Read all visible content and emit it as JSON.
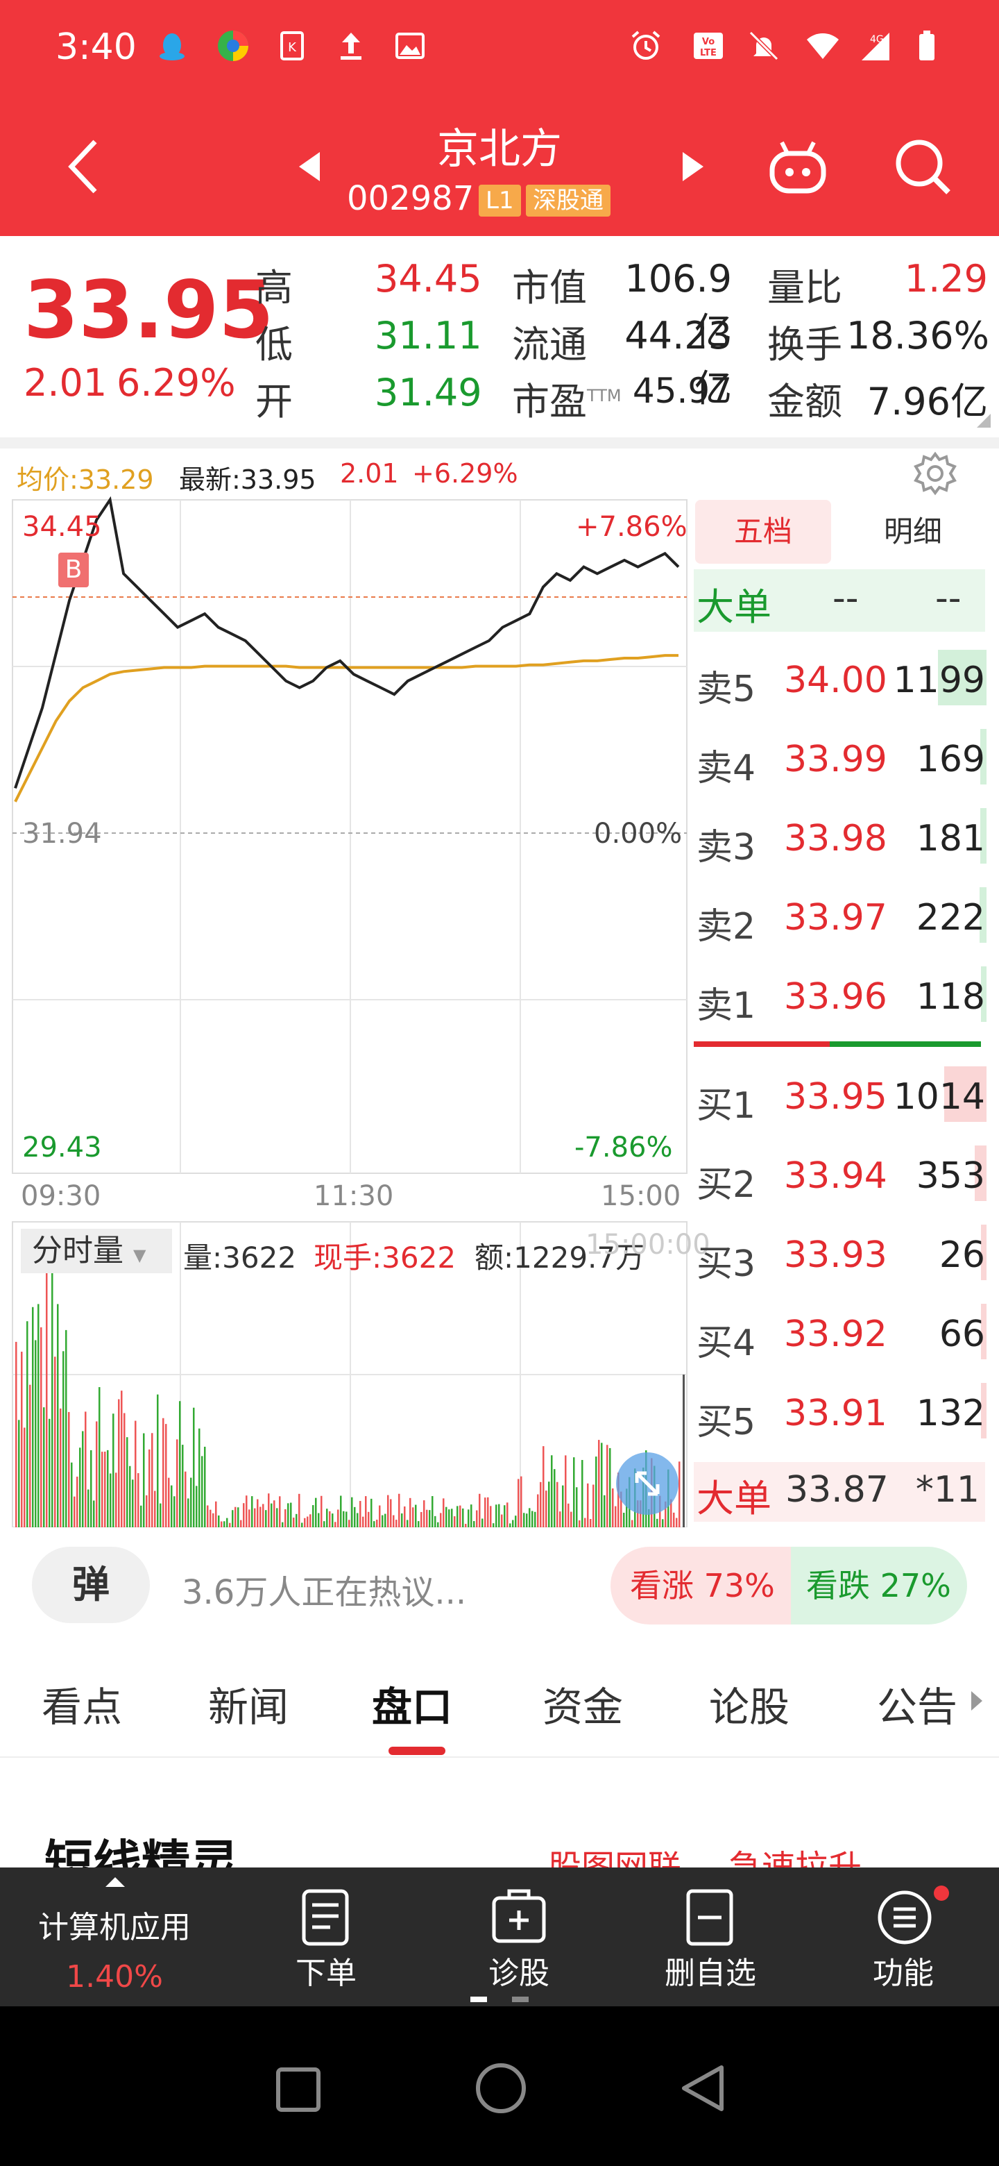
{
  "status_bar": {
    "time": "3:40"
  },
  "header": {
    "title": "京北方",
    "code": "002987",
    "tag_level": "L1",
    "tag_connect": "深股通"
  },
  "quote": {
    "price": "33.95",
    "change": "2.01",
    "change_pct": "6.29%",
    "high_label": "高",
    "high": "34.45",
    "low_label": "低",
    "low": "31.11",
    "open_label": "开",
    "open": "31.49",
    "mktcap_label": "市值",
    "mktcap": "106.9亿",
    "float_label": "流通",
    "float": "44.23亿",
    "pe_label": "市盈",
    "pe_sup": "TTM",
    "pe": "45.97",
    "volratio_label": "量比",
    "volratio": "1.29",
    "turnover_label": "换手",
    "turnover": "18.36%",
    "amount_label": "金额",
    "amount": "7.96亿"
  },
  "chart_legend": {
    "avg": "均价:33.29",
    "latest": "最新:33.95",
    "chg": "2.01",
    "pct": "+6.29%"
  },
  "chart_data": {
    "type": "line",
    "y_max_label": "34.45",
    "y_mid_label": "31.94",
    "y_min_label": "29.43",
    "pct_max_label": "+7.86%",
    "pct_mid_label": "0.00%",
    "pct_min_label": "-7.86%",
    "x_labels": [
      "09:30",
      "11:30",
      "15:00"
    ],
    "ylim": [
      29.43,
      34.45
    ],
    "buy_marker": "B",
    "series": [
      {
        "values": [
          32.3,
          32.6,
          32.9,
          33.3,
          33.7,
          34.0,
          34.3,
          34.45,
          33.9,
          33.8,
          33.7,
          33.6,
          33.5,
          33.55,
          33.6,
          33.5,
          33.45,
          33.4,
          33.3,
          33.2,
          33.1,
          33.05,
          33.1,
          33.2,
          33.25,
          33.15,
          33.1,
          33.05,
          33.0,
          33.1,
          33.15,
          33.2,
          33.25,
          33.3,
          33.35,
          33.4,
          33.5,
          33.55,
          33.6,
          33.8,
          33.9,
          33.85,
          33.95,
          33.9,
          33.95,
          34.0,
          33.95,
          34.0,
          34.05,
          33.95
        ]
      },
      {
        "values": [
          32.2,
          32.4,
          32.6,
          32.8,
          32.95,
          33.05,
          33.1,
          33.15,
          33.17,
          33.18,
          33.19,
          33.2,
          33.2,
          33.2,
          33.21,
          33.21,
          33.21,
          33.21,
          33.21,
          33.21,
          33.21,
          33.2,
          33.2,
          33.2,
          33.2,
          33.2,
          33.2,
          33.2,
          33.2,
          33.2,
          33.2,
          33.2,
          33.2,
          33.2,
          33.21,
          33.21,
          33.21,
          33.21,
          33.22,
          33.22,
          33.23,
          33.24,
          33.25,
          33.25,
          33.26,
          33.27,
          33.27,
          33.28,
          33.29,
          33.29
        ]
      }
    ]
  },
  "volume_panel": {
    "mode": "分时量",
    "vol": "量:3622",
    "now_hand": "现手:3622",
    "amount": "额:1229.7万",
    "time_overlay": "15:00:00"
  },
  "order_book": {
    "tab_five": "五档",
    "tab_detail": "明细",
    "big_order_label": "大单",
    "big_order_val1": "--",
    "big_order_val2": "--",
    "asks": [
      {
        "label": "卖5",
        "price": "34.00",
        "qty": "1199",
        "pct": 0.48
      },
      {
        "label": "卖4",
        "price": "33.99",
        "qty": "169",
        "pct": 0.06
      },
      {
        "label": "卖3",
        "price": "33.98",
        "qty": "181",
        "pct": 0.06
      },
      {
        "label": "卖2",
        "price": "33.97",
        "qty": "222",
        "pct": 0.07
      },
      {
        "label": "卖1",
        "price": "33.96",
        "qty": "118",
        "pct": 0.04
      }
    ],
    "bids": [
      {
        "label": "买1",
        "price": "33.95",
        "qty": "1014",
        "pct": 0.42
      },
      {
        "label": "买2",
        "price": "33.94",
        "qty": "353",
        "pct": 0.12
      },
      {
        "label": "买3",
        "price": "33.93",
        "qty": "26",
        "pct": 0.02
      },
      {
        "label": "买4",
        "price": "33.92",
        "qty": "66",
        "pct": 0.02
      },
      {
        "label": "买5",
        "price": "33.91",
        "qty": "132",
        "pct": 0.03
      }
    ],
    "big_trade_label": "大单",
    "big_trade_price": "33.87",
    "big_trade_qty": "*11"
  },
  "community": {
    "danmu_label": "弹",
    "discussing": "3.6万人正在热议...",
    "bull": "看涨 73%",
    "bear": "看跌 27%",
    "bull_pct": 73
  },
  "tabs": [
    "看点",
    "新闻",
    "盘口",
    "资金",
    "论股",
    "公告"
  ],
  "section": {
    "title": "短线精灵",
    "link1": "股图网联",
    "link2": "急速拉升"
  },
  "bottom_bar": {
    "sector_name": "计算机应用",
    "sector_pct": "1.40%",
    "order": "下单",
    "diagnose": "诊股",
    "remove_watch": "删自选",
    "functions": "功能"
  },
  "colors": {
    "brand_red": "#f0363c",
    "up_red": "#e32b30",
    "down_green": "#1a9a2e",
    "avg_orange": "#e0a020"
  }
}
